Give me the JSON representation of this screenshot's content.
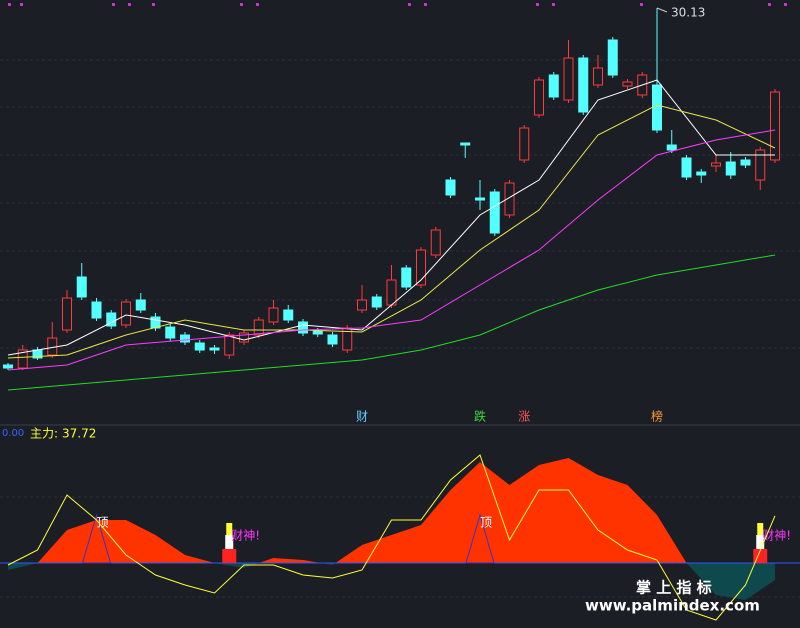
{
  "chart_data": [
    {
      "type": "candlestick",
      "ylim": [
        14.45,
        30.45
      ],
      "up_color": "#ff3b3b",
      "down_color": "#54ffff",
      "candles": {
        "open": [
          15.85,
          15.73,
          16.45,
          16.25,
          17.25,
          19.37,
          18.37,
          17.93,
          17.45,
          18.45,
          17.77,
          17.37,
          17.05,
          16.73,
          16.53,
          16.25,
          16.77,
          17.05,
          17.57,
          18.05,
          17.57,
          17.21,
          17.05,
          16.45,
          18.05,
          18.57,
          18.25,
          19.73,
          19.05,
          20.25,
          23.25,
          24.73,
          22.53,
          22.77,
          21.85,
          24.05,
          25.85,
          27.45,
          26.45,
          28.13,
          27.05,
          28.85,
          27.01,
          26.65,
          27.05,
          24.65,
          24.13,
          23.57,
          23.81,
          23.97,
          24.05,
          23.25,
          24.05
        ],
        "high": [
          15.93,
          16.65,
          16.57,
          17.57,
          18.85,
          19.93,
          18.53,
          18.05,
          18.49,
          18.73,
          17.93,
          17.49,
          17.17,
          16.85,
          16.65,
          17.17,
          17.25,
          17.77,
          18.45,
          18.25,
          17.69,
          17.33,
          17.17,
          17.45,
          19.05,
          18.69,
          19.85,
          19.85,
          20.57,
          21.37,
          23.37,
          24.73,
          23.25,
          22.89,
          23.25,
          25.45,
          27.37,
          27.57,
          28.85,
          28.25,
          28.25,
          28.97,
          27.29,
          27.57,
          30.13,
          25.25,
          24.25,
          23.69,
          24.25,
          24.37,
          24.17,
          24.57,
          26.89
        ],
        "low": [
          15.65,
          15.65,
          16.05,
          16.13,
          17.13,
          18.45,
          17.61,
          17.29,
          17.33,
          17.93,
          17.21,
          16.81,
          16.65,
          16.33,
          16.29,
          16.09,
          16.65,
          16.93,
          17.45,
          17.53,
          17.01,
          16.97,
          16.57,
          16.33,
          17.93,
          18.05,
          18.13,
          18.85,
          18.93,
          20.13,
          22.53,
          24.13,
          22.05,
          21.01,
          21.73,
          23.93,
          25.73,
          26.45,
          26.33,
          25.85,
          26.93,
          27.33,
          26.89,
          26.53,
          25.13,
          24.33,
          23.25,
          23.13,
          23.57,
          23.29,
          23.73,
          22.85,
          23.93
        ],
        "close": [
          15.73,
          16.45,
          16.13,
          16.93,
          18.53,
          18.57,
          17.73,
          17.41,
          18.37,
          18.05,
          17.33,
          16.93,
          16.77,
          16.45,
          16.45,
          17.05,
          17.13,
          17.65,
          18.13,
          17.65,
          17.13,
          17.09,
          16.69,
          17.33,
          18.45,
          18.17,
          19.25,
          18.97,
          20.45,
          21.25,
          22.65,
          24.65,
          22.45,
          21.13,
          23.13,
          25.33,
          27.25,
          26.57,
          28.13,
          25.97,
          27.73,
          27.45,
          27.17,
          27.45,
          25.25,
          24.45,
          23.37,
          23.45,
          23.93,
          23.45,
          23.85,
          24.45,
          26.77
        ]
      },
      "lines": [
        {
          "color": "#ffffff",
          "x": [
            0,
            4,
            8,
            12,
            16,
            20,
            24,
            28,
            32,
            36,
            40,
            44,
            48,
            52
          ],
          "values": [
            16.25,
            16.65,
            17.85,
            17.45,
            16.85,
            17.45,
            17.25,
            19.25,
            21.85,
            23.25,
            26.45,
            27.25,
            24.25,
            24.25
          ]
        },
        {
          "color": "#e8e84a",
          "x": [
            0,
            4,
            8,
            12,
            16,
            20,
            24,
            28,
            32,
            36,
            40,
            44,
            48,
            52
          ],
          "values": [
            16.13,
            16.25,
            17.05,
            17.65,
            17.25,
            17.25,
            17.17,
            18.45,
            20.45,
            22.05,
            25.05,
            26.25,
            25.65,
            24.53
          ]
        },
        {
          "color": "#ff3cff",
          "x": [
            0,
            4,
            8,
            12,
            16,
            20,
            24,
            28,
            32,
            36,
            40,
            44,
            48,
            52
          ],
          "values": [
            15.65,
            15.85,
            16.65,
            16.85,
            17.05,
            17.25,
            17.33,
            17.65,
            19.05,
            20.45,
            22.45,
            24.25,
            24.85,
            25.25
          ]
        },
        {
          "color": "#22dd22",
          "x": [
            0,
            4,
            8,
            12,
            16,
            20,
            24,
            28,
            32,
            36,
            40,
            44,
            48,
            52
          ],
          "values": [
            14.85,
            15.05,
            15.25,
            15.45,
            15.65,
            15.85,
            16.05,
            16.45,
            17.05,
            18.05,
            18.85,
            19.45,
            19.85,
            20.25
          ]
        }
      ],
      "signals": [
        {
          "x": 24,
          "label": "财",
          "color": "#66ccff"
        },
        {
          "x": 32,
          "label": "跌",
          "color": "#33dd33"
        },
        {
          "x": 35,
          "label": "涨",
          "color": "#ff5555"
        },
        {
          "x": 44,
          "label": "榜",
          "color": "#ff9933"
        }
      ]
    },
    {
      "type": "area",
      "ylim": [
        -52,
        110.4
      ],
      "yticks": [
        {
          "value": 0,
          "label": "0.00"
        }
      ],
      "x": [
        0,
        2,
        4,
        6,
        8,
        10,
        12,
        14,
        16,
        18,
        20,
        22,
        24,
        26,
        28,
        30,
        32,
        34,
        36,
        38,
        40,
        42,
        44,
        46,
        48,
        50,
        52
      ],
      "series": [
        {
          "color": "#ff3300",
          "neg_color": "#0e4a4d",
          "values": [
            -5.6,
            0,
            26.4,
            34.4,
            34.4,
            22.4,
            6.4,
            0,
            -4,
            4,
            2.4,
            -1.6,
            14.4,
            22.4,
            30.4,
            58.4,
            80.8,
            62.4,
            78.4,
            84,
            70.4,
            62.4,
            38.4,
            0,
            -25.6,
            -29.6,
            -13.6
          ]
        },
        {
          "name": "主力:",
          "color": "#ffff33",
          "values": [
            -1.6,
            10.4,
            54.4,
            34.4,
            6.4,
            -9.6,
            -17.6,
            -24,
            -1.6,
            -1.6,
            -9.6,
            -12,
            -5.6,
            34.4,
            34.4,
            66.4,
            86.4,
            18.4,
            58.4,
            58.4,
            26.4,
            10.4,
            2.4,
            -37.6,
            -45.6,
            -17.6,
            37.72
          ]
        }
      ],
      "signals": [
        {
          "x": 6,
          "label": "顶",
          "shape": "triangle"
        },
        {
          "x": 32,
          "label": "顶",
          "shape": "triangle"
        },
        {
          "x": 15,
          "label": "财神!",
          "shape": "bar"
        },
        {
          "x": 51,
          "label": "财神!",
          "shape": "bar"
        }
      ]
    }
  ],
  "watermark": {
    "title": "掌 上 指 标",
    "url": "www.palmindex.com"
  }
}
